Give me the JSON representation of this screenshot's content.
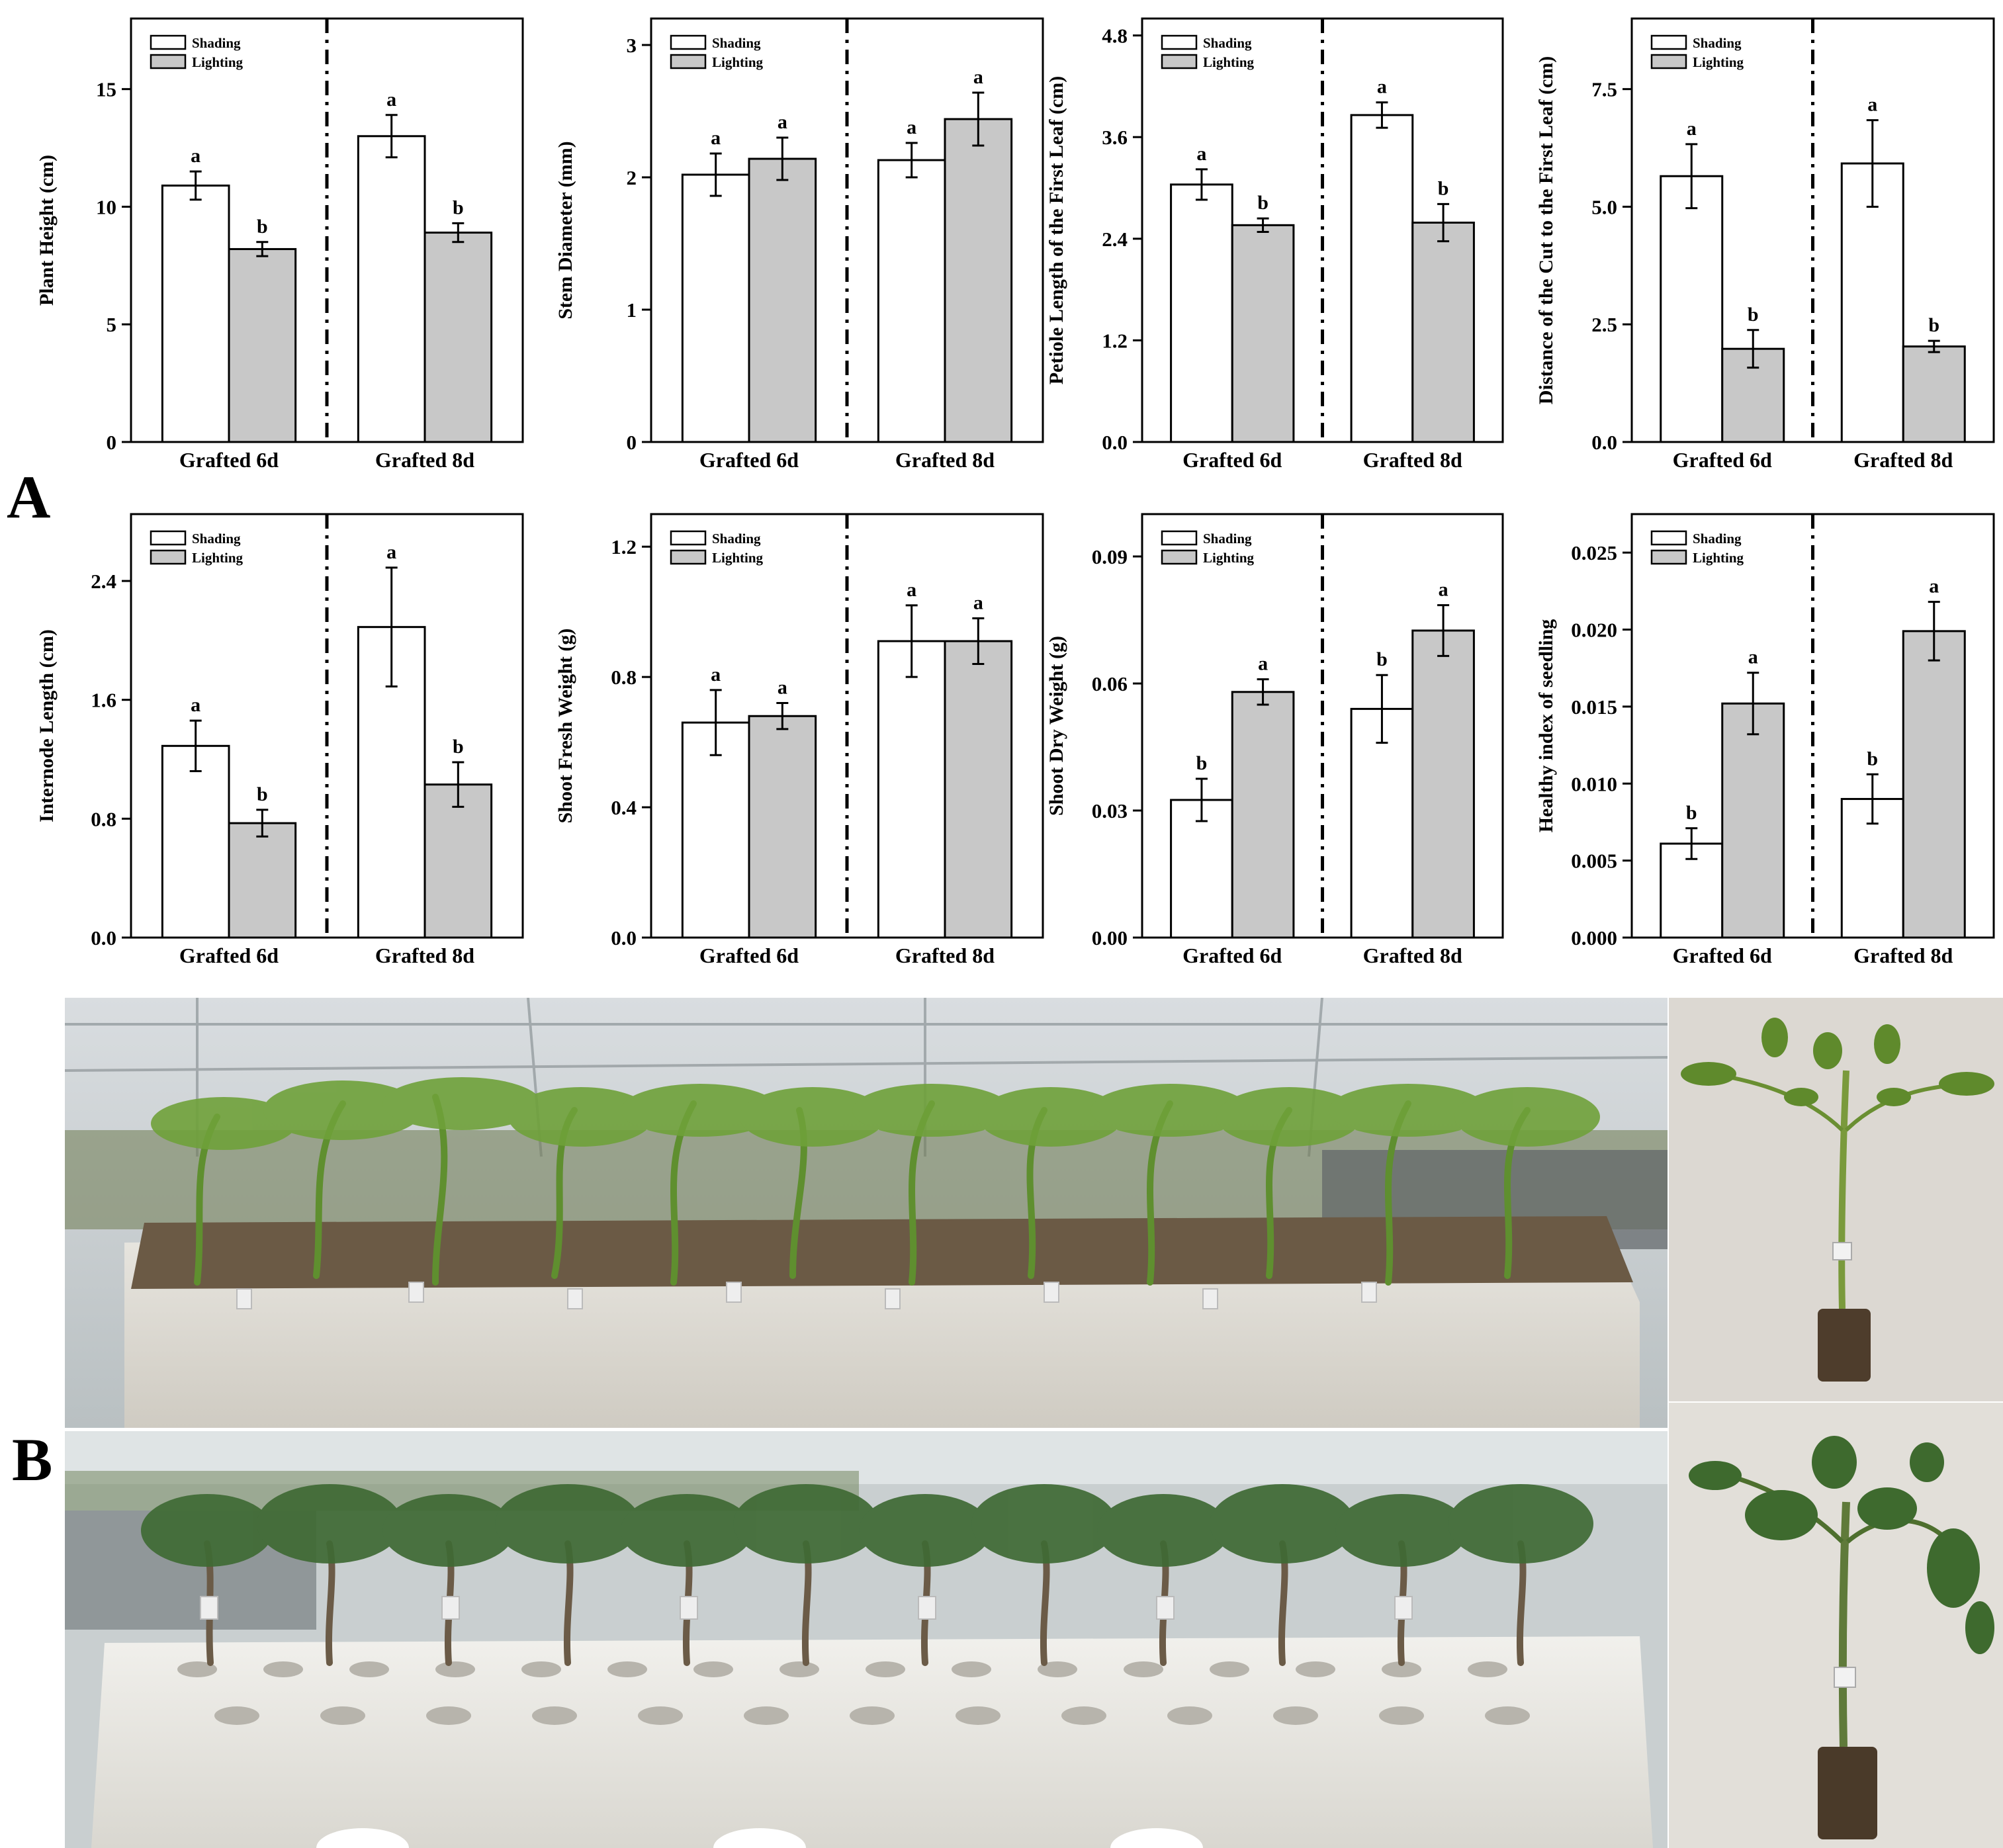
{
  "panels": {
    "a": "A",
    "b": "B"
  },
  "colors": {
    "shading": "#ffffff",
    "lighting": "#c8c8c8",
    "outline": "#000000"
  },
  "chart_data": [
    {
      "type": "bar",
      "title": "",
      "xlabel": "",
      "ylabel": "Plant Height (cm)",
      "categories": [
        "Grafted 6d",
        "Grafted 8d"
      ],
      "ylim": [
        0,
        18
      ],
      "yticks": [
        0,
        5,
        10,
        15
      ],
      "ytick_labels": [
        "0",
        "5",
        "10",
        "15"
      ],
      "legend": "top-left",
      "grid": false,
      "series": [
        {
          "name": "Shading",
          "values": [
            10.9,
            13.0
          ],
          "errors": [
            0.6,
            0.9
          ],
          "letters": [
            "a",
            "a"
          ]
        },
        {
          "name": "Lighting",
          "values": [
            8.2,
            8.9
          ],
          "errors": [
            0.3,
            0.4
          ],
          "letters": [
            "b",
            "b"
          ]
        }
      ]
    },
    {
      "type": "bar",
      "title": "",
      "xlabel": "",
      "ylabel": "Stem Diameter (mm)",
      "categories": [
        "Grafted 6d",
        "Grafted 8d"
      ],
      "ylim": [
        0,
        3.2
      ],
      "yticks": [
        0,
        1,
        2,
        3
      ],
      "ytick_labels": [
        "0",
        "1",
        "2",
        "3"
      ],
      "legend": "top-left",
      "grid": false,
      "series": [
        {
          "name": "Shading",
          "values": [
            2.02,
            2.13
          ],
          "errors": [
            0.16,
            0.13
          ],
          "letters": [
            "a",
            "a"
          ]
        },
        {
          "name": "Lighting",
          "values": [
            2.14,
            2.44
          ],
          "errors": [
            0.16,
            0.2
          ],
          "letters": [
            "a",
            "a"
          ]
        }
      ]
    },
    {
      "type": "bar",
      "title": "",
      "xlabel": "",
      "ylabel": "Petiole Length of the First Leaf (cm)",
      "categories": [
        "Grafted 6d",
        "Grafted 8d"
      ],
      "ylim": [
        0,
        5.0
      ],
      "yticks": [
        0,
        1.2,
        2.4,
        3.6,
        4.8
      ],
      "ytick_labels": [
        "0.0",
        "1.2",
        "2.4",
        "3.6",
        "4.8"
      ],
      "legend": "top-left",
      "grid": false,
      "series": [
        {
          "name": "Shading",
          "values": [
            3.04,
            3.86
          ],
          "errors": [
            0.18,
            0.15
          ],
          "letters": [
            "a",
            "a"
          ]
        },
        {
          "name": "Lighting",
          "values": [
            2.56,
            2.59
          ],
          "errors": [
            0.08,
            0.22
          ],
          "letters": [
            "b",
            "b"
          ]
        }
      ]
    },
    {
      "type": "bar",
      "title": "",
      "xlabel": "",
      "ylabel": "Distance of the Cut to the First Leaf (cm)",
      "categories": [
        "Grafted 6d",
        "Grafted 8d"
      ],
      "ylim": [
        0,
        9.0
      ],
      "yticks": [
        0,
        2.5,
        5.0,
        7.5
      ],
      "ytick_labels": [
        "0.0",
        "2.5",
        "5.0",
        "7.5"
      ],
      "legend": "top-left",
      "grid": false,
      "series": [
        {
          "name": "Shading",
          "values": [
            5.65,
            5.92
          ],
          "errors": [
            0.68,
            0.92
          ],
          "letters": [
            "a",
            "a"
          ]
        },
        {
          "name": "Lighting",
          "values": [
            1.98,
            2.03
          ],
          "errors": [
            0.4,
            0.12
          ],
          "letters": [
            "b",
            "b"
          ]
        }
      ]
    },
    {
      "type": "bar",
      "title": "",
      "xlabel": "",
      "ylabel": "Internode Length (cm)",
      "categories": [
        "Grafted 6d",
        "Grafted 8d"
      ],
      "ylim": [
        0,
        2.85
      ],
      "yticks": [
        0,
        0.8,
        1.6,
        2.4
      ],
      "ytick_labels": [
        "0.0",
        "0.8",
        "1.6",
        "2.4"
      ],
      "legend": "top-left",
      "grid": false,
      "series": [
        {
          "name": "Shading",
          "values": [
            1.29,
            2.09
          ],
          "errors": [
            0.17,
            0.4
          ],
          "letters": [
            "a",
            "a"
          ]
        },
        {
          "name": "Lighting",
          "values": [
            0.77,
            1.03
          ],
          "errors": [
            0.09,
            0.15
          ],
          "letters": [
            "b",
            "b"
          ]
        }
      ]
    },
    {
      "type": "bar",
      "title": "",
      "xlabel": "",
      "ylabel": "Shoot Fresh Weight (g)",
      "categories": [
        "Grafted 6d",
        "Grafted 8d"
      ],
      "ylim": [
        0,
        1.3
      ],
      "yticks": [
        0,
        0.4,
        0.8,
        1.2
      ],
      "ytick_labels": [
        "0.0",
        "0.4",
        "0.8",
        "1.2"
      ],
      "legend": "top-left",
      "grid": false,
      "series": [
        {
          "name": "Shading",
          "values": [
            0.66,
            0.91
          ],
          "errors": [
            0.1,
            0.11
          ],
          "letters": [
            "a",
            "a"
          ]
        },
        {
          "name": "Lighting",
          "values": [
            0.68,
            0.91
          ],
          "errors": [
            0.04,
            0.07
          ],
          "letters": [
            "a",
            "a"
          ]
        }
      ]
    },
    {
      "type": "bar",
      "title": "",
      "xlabel": "",
      "ylabel": "Shoot Dry Weight (g)",
      "categories": [
        "Grafted 6d",
        "Grafted 8d"
      ],
      "ylim": [
        0,
        0.1
      ],
      "yticks": [
        0,
        0.03,
        0.06,
        0.09
      ],
      "ytick_labels": [
        "0.00",
        "0.03",
        "0.06",
        "0.09"
      ],
      "legend": "top-left",
      "grid": false,
      "series": [
        {
          "name": "Shading",
          "values": [
            0.0325,
            0.054
          ],
          "errors": [
            0.005,
            0.008
          ],
          "letters": [
            "b",
            "b"
          ]
        },
        {
          "name": "Lighting",
          "values": [
            0.058,
            0.0725
          ],
          "errors": [
            0.003,
            0.006
          ],
          "letters": [
            "a",
            "a"
          ]
        }
      ]
    },
    {
      "type": "bar",
      "title": "",
      "xlabel": "",
      "ylabel": "Healthy index of seedling",
      "categories": [
        "Grafted 6d",
        "Grafted 8d"
      ],
      "ylim": [
        0,
        0.0275
      ],
      "yticks": [
        0,
        0.005,
        0.01,
        0.015,
        0.02,
        0.025
      ],
      "ytick_labels": [
        "0.000",
        "0.005",
        "0.010",
        "0.015",
        "0.020",
        "0.025"
      ],
      "legend": "top-left",
      "grid": false,
      "series": [
        {
          "name": "Shading",
          "values": [
            0.0061,
            0.009
          ],
          "errors": [
            0.001,
            0.0016
          ],
          "letters": [
            "b",
            "b"
          ]
        },
        {
          "name": "Lighting",
          "values": [
            0.0152,
            0.0199
          ],
          "errors": [
            0.002,
            0.0019
          ],
          "letters": [
            "a",
            "a"
          ]
        }
      ]
    }
  ]
}
